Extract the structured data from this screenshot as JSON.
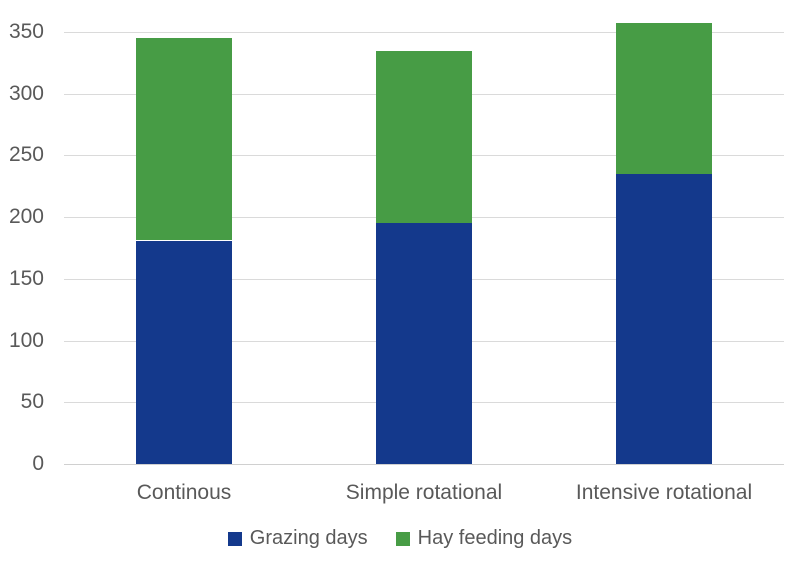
{
  "chart_data": {
    "type": "bar",
    "stacked": true,
    "title": "",
    "xlabel": "",
    "ylabel": "",
    "categories": [
      "Continous",
      "Simple rotational",
      "Intensive rotational"
    ],
    "series": [
      {
        "name": "Grazing days",
        "color": "#14398C",
        "values": [
          181,
          196,
          235
        ]
      },
      {
        "name": "Hay feeding days",
        "color": "#479C45",
        "values": [
          164,
          139,
          122
        ]
      }
    ],
    "stack_totals": [
      345,
      335,
      357
    ],
    "ylim": [
      0,
      350
    ],
    "yticks": [
      0,
      50,
      100,
      150,
      200,
      250,
      300,
      350
    ],
    "grid": "horizontal",
    "legend_position": "bottom"
  },
  "styles": {
    "background": "#FFFFFF",
    "grid_color": "#DADADA",
    "axis_text_color": "#595959"
  }
}
